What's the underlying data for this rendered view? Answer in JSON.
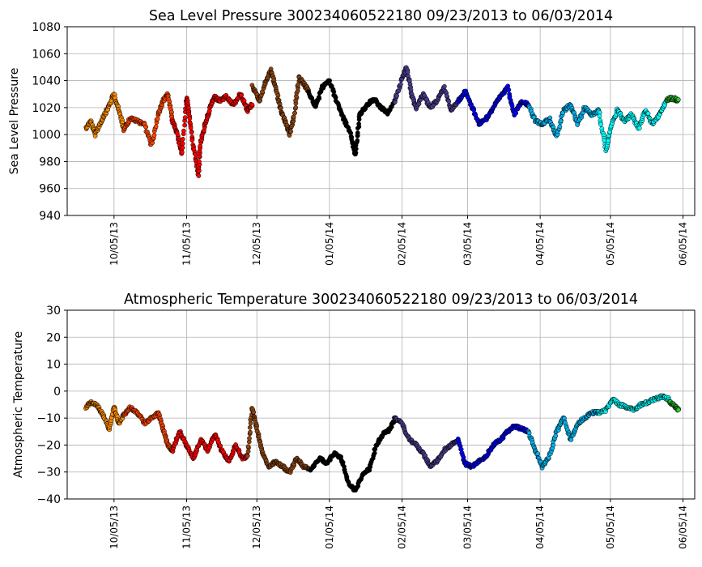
{
  "chart_data": [
    {
      "type": "scatter",
      "title": "Sea Level Pressure 300234060522180  09/23/2013 to 06/03/2014",
      "ylabel": "Sea Level Pressure",
      "ylim": [
        940,
        1080
      ],
      "yticks": [
        940,
        960,
        980,
        1000,
        1020,
        1040,
        1060,
        1080
      ],
      "xlim": [
        "2013-09-15",
        "2014-06-10"
      ],
      "xticks": [
        "2013-10-05",
        "2013-11-05",
        "2013-12-05",
        "2014-01-05",
        "2014-02-05",
        "2014-03-05",
        "2014-04-05",
        "2014-05-05",
        "2014-06-05"
      ],
      "xticklabels": [
        "10/05/13",
        "11/05/13",
        "12/05/13",
        "01/05/14",
        "02/05/14",
        "03/05/14",
        "04/05/14",
        "05/05/14",
        "06/05/14"
      ],
      "grid": true,
      "series": [
        {
          "color": "#ff8c00",
          "x": [
            "2013-09-23",
            "2013-09-25",
            "2013-09-27",
            "2013-09-29",
            "2013-10-01",
            "2013-10-03",
            "2013-10-05",
            "2013-10-07",
            "2013-10-09"
          ],
          "values": [
            1005,
            1010,
            1000,
            1008,
            1015,
            1022,
            1030,
            1018,
            1006
          ]
        },
        {
          "color": "#ff4500",
          "x": [
            "2013-10-09",
            "2013-10-12",
            "2013-10-15",
            "2013-10-18",
            "2013-10-21",
            "2013-10-24",
            "2013-10-26",
            "2013-10-28",
            "2013-10-30"
          ],
          "values": [
            1004,
            1012,
            1010,
            1008,
            992,
            1015,
            1025,
            1030,
            1010
          ]
        },
        {
          "color": "#ff0000",
          "x": [
            "2013-10-30",
            "2013-11-01",
            "2013-11-03",
            "2013-11-05",
            "2013-11-06",
            "2013-11-08",
            "2013-11-10",
            "2013-11-11",
            "2013-11-13",
            "2013-11-15",
            "2013-11-17",
            "2013-11-19"
          ],
          "values": [
            1010,
            1000,
            985,
            1028,
            1015,
            990,
            970,
            995,
            1008,
            1020,
            1028,
            1025
          ]
        },
        {
          "color": "#ff0000",
          "x": [
            "2013-11-19",
            "2013-11-22",
            "2013-11-25",
            "2013-11-28",
            "2013-12-01",
            "2013-12-03"
          ],
          "values": [
            1025,
            1028,
            1022,
            1030,
            1018,
            1022
          ]
        },
        {
          "color": "#8b4513",
          "x": [
            "2013-12-03",
            "2013-12-06",
            "2013-12-09",
            "2013-12-11",
            "2013-12-13",
            "2013-12-15",
            "2013-12-17",
            "2013-12-19",
            "2013-12-21",
            "2013-12-23",
            "2013-12-25",
            "2013-12-27"
          ],
          "values": [
            1036,
            1025,
            1040,
            1048,
            1035,
            1020,
            1010,
            1000,
            1015,
            1042,
            1038,
            1032
          ]
        },
        {
          "color": "#000000",
          "x": [
            "2013-12-27",
            "2013-12-30",
            "2014-01-02",
            "2014-01-05",
            "2014-01-08",
            "2014-01-11",
            "2014-01-14",
            "2014-01-16",
            "2014-01-18",
            "2014-01-21",
            "2014-01-24",
            "2014-01-27",
            "2014-01-30",
            "2014-02-02"
          ],
          "values": [
            1032,
            1020,
            1035,
            1040,
            1025,
            1012,
            1000,
            985,
            1015,
            1022,
            1026,
            1020,
            1016,
            1025
          ]
        },
        {
          "color": "#483d8b",
          "x": [
            "2014-02-02",
            "2014-02-05",
            "2014-02-07",
            "2014-02-09",
            "2014-02-11",
            "2014-02-14",
            "2014-02-17",
            "2014-02-20",
            "2014-02-23",
            "2014-02-26",
            "2014-03-01"
          ],
          "values": [
            1025,
            1042,
            1050,
            1030,
            1020,
            1030,
            1020,
            1025,
            1035,
            1018,
            1025
          ]
        },
        {
          "color": "#0000ff",
          "x": [
            "2014-03-01",
            "2014-03-04",
            "2014-03-07",
            "2014-03-10",
            "2014-03-13",
            "2014-03-16",
            "2014-03-19",
            "2014-03-22",
            "2014-03-25",
            "2014-03-28",
            "2014-03-31"
          ],
          "values": [
            1025,
            1032,
            1020,
            1008,
            1012,
            1020,
            1028,
            1035,
            1015,
            1025,
            1022
          ]
        },
        {
          "color": "#00b4f0",
          "x": [
            "2014-03-31",
            "2014-04-03",
            "2014-04-06",
            "2014-04-09",
            "2014-04-12",
            "2014-04-15",
            "2014-04-18",
            "2014-04-21",
            "2014-04-24",
            "2014-04-27",
            "2014-04-30"
          ],
          "values": [
            1022,
            1010,
            1008,
            1012,
            998,
            1018,
            1022,
            1008,
            1020,
            1015,
            1018
          ]
        },
        {
          "color": "#00ffff",
          "x": [
            "2014-04-30",
            "2014-05-03",
            "2014-05-05",
            "2014-05-08",
            "2014-05-11",
            "2014-05-14",
            "2014-05-17",
            "2014-05-20",
            "2014-05-23",
            "2014-05-26",
            "2014-05-29"
          ],
          "values": [
            1018,
            988,
            1005,
            1018,
            1010,
            1015,
            1005,
            1018,
            1008,
            1015,
            1025
          ]
        },
        {
          "color": "#32cd32",
          "x": [
            "2014-05-29",
            "2014-05-31",
            "2014-06-02",
            "2014-06-03"
          ],
          "values": [
            1026,
            1027,
            1026,
            1026
          ]
        }
      ]
    },
    {
      "type": "scatter",
      "title": "Atmospheric Temperature 300234060522180  09/23/2013 to 06/03/2014",
      "ylabel": "Atmospheric Temperature",
      "ylim": [
        -40,
        30
      ],
      "yticks": [
        -40,
        -30,
        -20,
        -10,
        0,
        10,
        20,
        30
      ],
      "xlim": [
        "2013-09-15",
        "2014-06-10"
      ],
      "xticks": [
        "2013-10-05",
        "2013-11-05",
        "2013-12-05",
        "2014-01-05",
        "2014-02-05",
        "2014-03-05",
        "2014-04-05",
        "2014-05-05",
        "2014-06-05"
      ],
      "xticklabels": [
        "10/05/13",
        "11/05/13",
        "12/05/13",
        "01/05/14",
        "02/05/14",
        "03/05/14",
        "04/05/14",
        "05/05/14",
        "06/05/14"
      ],
      "grid": true,
      "series": [
        {
          "color": "#ff8c00",
          "x": [
            "2013-09-23",
            "2013-09-25",
            "2013-09-27",
            "2013-09-29",
            "2013-10-01",
            "2013-10-03",
            "2013-10-05",
            "2013-10-07",
            "2013-10-09"
          ],
          "values": [
            -6,
            -4,
            -5,
            -7,
            -10,
            -14,
            -6,
            -12,
            -9
          ]
        },
        {
          "color": "#ff4500",
          "x": [
            "2013-10-09",
            "2013-10-12",
            "2013-10-15",
            "2013-10-18",
            "2013-10-21",
            "2013-10-24",
            "2013-10-26",
            "2013-10-28",
            "2013-10-30"
          ],
          "values": [
            -9,
            -6,
            -8,
            -12,
            -10,
            -8,
            -14,
            -20,
            -22
          ]
        },
        {
          "color": "#ff0000",
          "x": [
            "2013-10-30",
            "2013-11-02",
            "2013-11-05",
            "2013-11-08",
            "2013-11-11",
            "2013-11-14",
            "2013-11-17",
            "2013-11-20",
            "2013-11-23",
            "2013-11-26",
            "2013-11-29",
            "2013-12-01"
          ],
          "values": [
            -22,
            -15,
            -20,
            -25,
            -18,
            -22,
            -16,
            -22,
            -26,
            -20,
            -25,
            -24
          ]
        },
        {
          "color": "#8b4513",
          "x": [
            "2013-12-01",
            "2013-12-03",
            "2013-12-05",
            "2013-12-07",
            "2013-12-10",
            "2013-12-13",
            "2013-12-16",
            "2013-12-19",
            "2013-12-22",
            "2013-12-25",
            "2013-12-28"
          ],
          "values": [
            -24,
            -6,
            -14,
            -22,
            -28,
            -26,
            -28,
            -30,
            -25,
            -28,
            -29
          ]
        },
        {
          "color": "#000000",
          "x": [
            "2013-12-28",
            "2014-01-01",
            "2014-01-04",
            "2014-01-07",
            "2014-01-10",
            "2014-01-13",
            "2014-01-16",
            "2014-01-19",
            "2014-01-22",
            "2014-01-25",
            "2014-01-28",
            "2014-01-31",
            "2014-02-02"
          ],
          "values": [
            -29,
            -25,
            -27,
            -23,
            -25,
            -34,
            -37,
            -31,
            -29,
            -20,
            -16,
            -14,
            -10
          ]
        },
        {
          "color": "#483d8b",
          "x": [
            "2014-02-02",
            "2014-02-05",
            "2014-02-08",
            "2014-02-11",
            "2014-02-14",
            "2014-02-17",
            "2014-02-20",
            "2014-02-23",
            "2014-02-26",
            "2014-03-01"
          ],
          "values": [
            -10,
            -12,
            -18,
            -20,
            -23,
            -28,
            -26,
            -22,
            -20,
            -18
          ]
        },
        {
          "color": "#0000ff",
          "x": [
            "2014-03-01",
            "2014-03-04",
            "2014-03-07",
            "2014-03-10",
            "2014-03-13",
            "2014-03-16",
            "2014-03-19",
            "2014-03-22",
            "2014-03-25",
            "2014-03-28",
            "2014-03-31"
          ],
          "values": [
            -18,
            -27,
            -28,
            -26,
            -24,
            -20,
            -18,
            -15,
            -13,
            -14,
            -15
          ]
        },
        {
          "color": "#00b4f0",
          "x": [
            "2014-03-31",
            "2014-04-03",
            "2014-04-06",
            "2014-04-09",
            "2014-04-12",
            "2014-04-15",
            "2014-04-18",
            "2014-04-21",
            "2014-04-24",
            "2014-04-27",
            "2014-04-30"
          ],
          "values": [
            -15,
            -22,
            -28,
            -24,
            -15,
            -10,
            -18,
            -12,
            -10,
            -8,
            -8
          ]
        },
        {
          "color": "#00ffff",
          "x": [
            "2014-04-30",
            "2014-05-03",
            "2014-05-06",
            "2014-05-09",
            "2014-05-12",
            "2014-05-15",
            "2014-05-18",
            "2014-05-21",
            "2014-05-24",
            "2014-05-27",
            "2014-05-30"
          ],
          "values": [
            -8,
            -7,
            -3,
            -5,
            -6,
            -7,
            -5,
            -4,
            -3,
            -2,
            -3
          ]
        },
        {
          "color": "#32cd32",
          "x": [
            "2014-05-30",
            "2014-06-01",
            "2014-06-02",
            "2014-06-03"
          ],
          "values": [
            -4,
            -5,
            -6,
            -7
          ]
        }
      ]
    }
  ]
}
